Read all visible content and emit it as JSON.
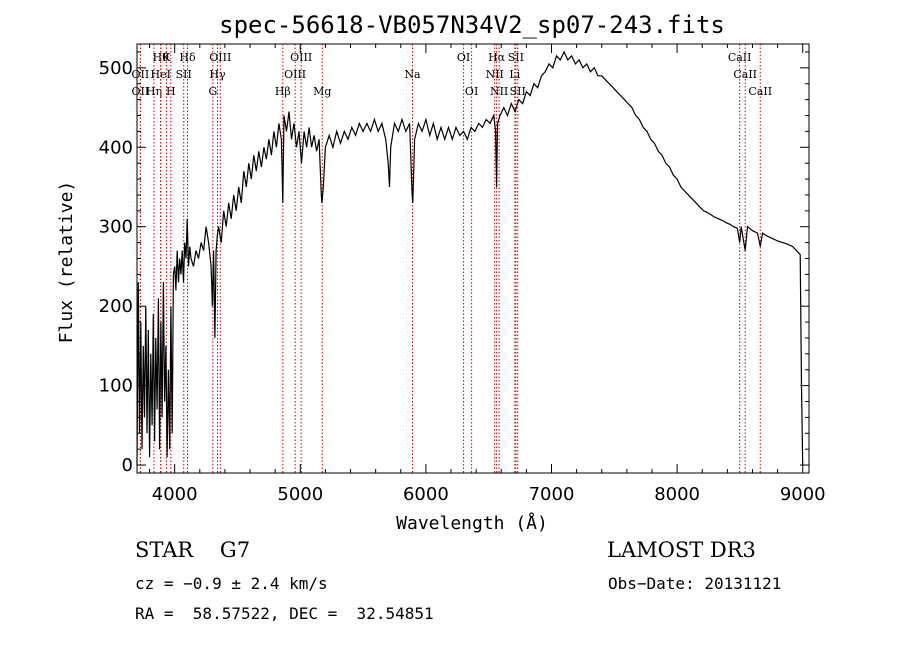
{
  "chart_data": {
    "type": "line",
    "title": "spec-56618-VB057N34V2_sp07-243.fits",
    "xlabel": "Wavelength (Å)",
    "ylabel": "Flux (relative)",
    "xlim": [
      3700,
      9050
    ],
    "ylim": [
      -10,
      530
    ],
    "x_ticks": [
      4000,
      5000,
      6000,
      7000,
      8000,
      9000
    ],
    "y_ticks": [
      0,
      100,
      200,
      300,
      400,
      500
    ],
    "grid": false,
    "line_color": "#000000",
    "marker_color": "#cc0000",
    "series": [
      {
        "values": [
          [
            3700,
            0
          ],
          [
            3710,
            230
          ],
          [
            3720,
            40
          ],
          [
            3730,
            180
          ],
          [
            3740,
            20
          ],
          [
            3750,
            150
          ],
          [
            3760,
            60
          ],
          [
            3770,
            200
          ],
          [
            3780,
            40
          ],
          [
            3790,
            170
          ],
          [
            3800,
            10
          ],
          [
            3810,
            140
          ],
          [
            3820,
            50
          ],
          [
            3830,
            190
          ],
          [
            3840,
            30
          ],
          [
            3850,
            160
          ],
          [
            3860,
            70
          ],
          [
            3870,
            210
          ],
          [
            3880,
            20
          ],
          [
            3890,
            180
          ],
          [
            3900,
            60
          ],
          [
            3910,
            230
          ],
          [
            3920,
            80
          ],
          [
            3930,
            150
          ],
          [
            3940,
            10
          ],
          [
            3950,
            120
          ],
          [
            3960,
            20
          ],
          [
            3970,
            200
          ],
          [
            3980,
            40
          ],
          [
            3990,
            240
          ],
          [
            4000,
            250
          ],
          [
            4010,
            220
          ],
          [
            4020,
            270
          ],
          [
            4030,
            230
          ],
          [
            4040,
            260
          ],
          [
            4050,
            240
          ],
          [
            4060,
            270
          ],
          [
            4070,
            230
          ],
          [
            4080,
            280
          ],
          [
            4090,
            260
          ],
          [
            4100,
            310
          ],
          [
            4110,
            250
          ],
          [
            4120,
            275
          ],
          [
            4130,
            260
          ],
          [
            4150,
            250
          ],
          [
            4170,
            270
          ],
          [
            4190,
            260
          ],
          [
            4210,
            280
          ],
          [
            4230,
            270
          ],
          [
            4250,
            300
          ],
          [
            4270,
            280
          ],
          [
            4290,
            250
          ],
          [
            4300,
            200
          ],
          [
            4310,
            270
          ],
          [
            4320,
            160
          ],
          [
            4330,
            270
          ],
          [
            4340,
            290
          ],
          [
            4350,
            300
          ],
          [
            4370,
            280
          ],
          [
            4390,
            320
          ],
          [
            4410,
            300
          ],
          [
            4430,
            330
          ],
          [
            4450,
            310
          ],
          [
            4470,
            340
          ],
          [
            4490,
            320
          ],
          [
            4510,
            350
          ],
          [
            4530,
            330
          ],
          [
            4550,
            370
          ],
          [
            4570,
            350
          ],
          [
            4590,
            380
          ],
          [
            4610,
            360
          ],
          [
            4630,
            390
          ],
          [
            4650,
            370
          ],
          [
            4670,
            395
          ],
          [
            4690,
            375
          ],
          [
            4710,
            400
          ],
          [
            4730,
            385
          ],
          [
            4750,
            410
          ],
          [
            4770,
            390
          ],
          [
            4790,
            420
          ],
          [
            4810,
            400
          ],
          [
            4830,
            430
          ],
          [
            4850,
            410
          ],
          [
            4861,
            330
          ],
          [
            4870,
            440
          ],
          [
            4890,
            420
          ],
          [
            4910,
            445
          ],
          [
            4930,
            410
          ],
          [
            4950,
            430
          ],
          [
            4970,
            400
          ],
          [
            4990,
            420
          ],
          [
            5010,
            380
          ],
          [
            5030,
            420
          ],
          [
            5050,
            400
          ],
          [
            5070,
            425
          ],
          [
            5090,
            400
          ],
          [
            5110,
            415
          ],
          [
            5130,
            395
          ],
          [
            5150,
            410
          ],
          [
            5167,
            340
          ],
          [
            5172,
            330
          ],
          [
            5183,
            350
          ],
          [
            5200,
            400
          ],
          [
            5230,
            415
          ],
          [
            5260,
            400
          ],
          [
            5290,
            420
          ],
          [
            5320,
            405
          ],
          [
            5350,
            420
          ],
          [
            5380,
            410
          ],
          [
            5410,
            425
          ],
          [
            5440,
            415
          ],
          [
            5470,
            430
          ],
          [
            5500,
            420
          ],
          [
            5530,
            430
          ],
          [
            5560,
            420
          ],
          [
            5590,
            435
          ],
          [
            5620,
            420
          ],
          [
            5650,
            430
          ],
          [
            5680,
            410
          ],
          [
            5700,
            380
          ],
          [
            5710,
            350
          ],
          [
            5720,
            400
          ],
          [
            5750,
            430
          ],
          [
            5780,
            420
          ],
          [
            5810,
            435
          ],
          [
            5840,
            420
          ],
          [
            5870,
            430
          ],
          [
            5890,
            340
          ],
          [
            5896,
            330
          ],
          [
            5910,
            410
          ],
          [
            5940,
            430
          ],
          [
            5970,
            420
          ],
          [
            6000,
            435
          ],
          [
            6030,
            415
          ],
          [
            6060,
            430
          ],
          [
            6090,
            410
          ],
          [
            6120,
            425
          ],
          [
            6150,
            410
          ],
          [
            6180,
            425
          ],
          [
            6210,
            410
          ],
          [
            6240,
            425
          ],
          [
            6270,
            415
          ],
          [
            6300,
            420
          ],
          [
            6330,
            410
          ],
          [
            6360,
            425
          ],
          [
            6390,
            420
          ],
          [
            6420,
            430
          ],
          [
            6450,
            425
          ],
          [
            6480,
            435
          ],
          [
            6510,
            430
          ],
          [
            6540,
            440
          ],
          [
            6555,
            420
          ],
          [
            6563,
            350
          ],
          [
            6570,
            430
          ],
          [
            6590,
            440
          ],
          [
            6620,
            450
          ],
          [
            6650,
            440
          ],
          [
            6680,
            455
          ],
          [
            6710,
            445
          ],
          [
            6740,
            460
          ],
          [
            6770,
            455
          ],
          [
            6800,
            470
          ],
          [
            6830,
            465
          ],
          [
            6860,
            480
          ],
          [
            6890,
            475
          ],
          [
            6920,
            490
          ],
          [
            6950,
            495
          ],
          [
            6980,
            505
          ],
          [
            7010,
            500
          ],
          [
            7040,
            515
          ],
          [
            7070,
            510
          ],
          [
            7100,
            520
          ],
          [
            7130,
            510
          ],
          [
            7160,
            515
          ],
          [
            7190,
            505
          ],
          [
            7220,
            510
          ],
          [
            7250,
            500
          ],
          [
            7280,
            505
          ],
          [
            7310,
            495
          ],
          [
            7340,
            500
          ],
          [
            7370,
            490
          ],
          [
            7400,
            490
          ],
          [
            7430,
            485
          ],
          [
            7460,
            480
          ],
          [
            7490,
            475
          ],
          [
            7520,
            470
          ],
          [
            7550,
            465
          ],
          [
            7580,
            460
          ],
          [
            7610,
            455
          ],
          [
            7640,
            450
          ],
          [
            7670,
            440
          ],
          [
            7700,
            435
          ],
          [
            7730,
            425
          ],
          [
            7760,
            420
          ],
          [
            7790,
            410
          ],
          [
            7820,
            405
          ],
          [
            7850,
            395
          ],
          [
            7880,
            390
          ],
          [
            7910,
            380
          ],
          [
            7940,
            375
          ],
          [
            7970,
            365
          ],
          [
            8000,
            360
          ],
          [
            8030,
            350
          ],
          [
            8060,
            345
          ],
          [
            8090,
            340
          ],
          [
            8120,
            335
          ],
          [
            8150,
            330
          ],
          [
            8180,
            325
          ],
          [
            8210,
            320
          ],
          [
            8240,
            318
          ],
          [
            8270,
            315
          ],
          [
            8300,
            312
          ],
          [
            8330,
            310
          ],
          [
            8360,
            308
          ],
          [
            8390,
            305
          ],
          [
            8420,
            303
          ],
          [
            8450,
            300
          ],
          [
            8480,
            298
          ],
          [
            8498,
            280
          ],
          [
            8510,
            300
          ],
          [
            8542,
            270
          ],
          [
            8560,
            300
          ],
          [
            8600,
            295
          ],
          [
            8640,
            292
          ],
          [
            8662,
            275
          ],
          [
            8680,
            292
          ],
          [
            8720,
            288
          ],
          [
            8760,
            285
          ],
          [
            8800,
            282
          ],
          [
            8840,
            280
          ],
          [
            8880,
            278
          ],
          [
            8920,
            275
          ],
          [
            8950,
            270
          ],
          [
            8980,
            265
          ],
          [
            8990,
            100
          ],
          [
            9000,
            0
          ]
        ]
      }
    ],
    "line_markers": [
      {
        "wavelength": 3727,
        "label": "OII",
        "row": 2
      },
      {
        "wavelength": 3727,
        "label": "OII",
        "row": 3
      },
      {
        "wavelength": 3835,
        "label": "Hη",
        "row": 3
      },
      {
        "wavelength": 3889,
        "label": "Hθ",
        "row": 1
      },
      {
        "wavelength": 3889,
        "label": "HeI",
        "row": 2
      },
      {
        "wavelength": 3934,
        "label": "K",
        "row": 1
      },
      {
        "wavelength": 3969,
        "label": "H",
        "row": 3
      },
      {
        "wavelength": 4072,
        "label": "SII",
        "row": 2
      },
      {
        "wavelength": 4102,
        "label": "Hδ",
        "row": 1
      },
      {
        "wavelength": 4304,
        "label": "G",
        "row": 3
      },
      {
        "wavelength": 4341,
        "label": "Hγ",
        "row": 2
      },
      {
        "wavelength": 4363,
        "label": "OIII",
        "row": 1
      },
      {
        "wavelength": 4861,
        "label": "Hβ",
        "row": 3
      },
      {
        "wavelength": 4959,
        "label": "OIII",
        "row": 2
      },
      {
        "wavelength": 5007,
        "label": "OIII",
        "row": 1
      },
      {
        "wavelength": 5175,
        "label": "Mg",
        "row": 3
      },
      {
        "wavelength": 5893,
        "label": "Na",
        "row": 2
      },
      {
        "wavelength": 6300,
        "label": "OI",
        "row": 1
      },
      {
        "wavelength": 6364,
        "label": "OI",
        "row": 3
      },
      {
        "wavelength": 6548,
        "label": "NII",
        "row": 2
      },
      {
        "wavelength": 6563,
        "label": "Hα",
        "row": 1
      },
      {
        "wavelength": 6583,
        "label": "NII",
        "row": 3
      },
      {
        "wavelength": 6708,
        "label": "Li",
        "row": 2
      },
      {
        "wavelength": 6716,
        "label": "SII",
        "row": 1
      },
      {
        "wavelength": 6731,
        "label": "SII",
        "row": 3
      },
      {
        "wavelength": 8498,
        "label": "CaII",
        "row": 1
      },
      {
        "wavelength": 8542,
        "label": "CaII",
        "row": 2
      },
      {
        "wavelength": 8662,
        "label": "CaII",
        "row": 3
      }
    ]
  },
  "info": {
    "class_text": "STAR    G7",
    "cz_text": "cz = −0.9 ± 2.4 km/s",
    "radec_text": "RA =  58.57522, DEC =  32.54851",
    "survey_text": "LAMOST DR3",
    "date_text": "Obs−Date: 20131121"
  }
}
